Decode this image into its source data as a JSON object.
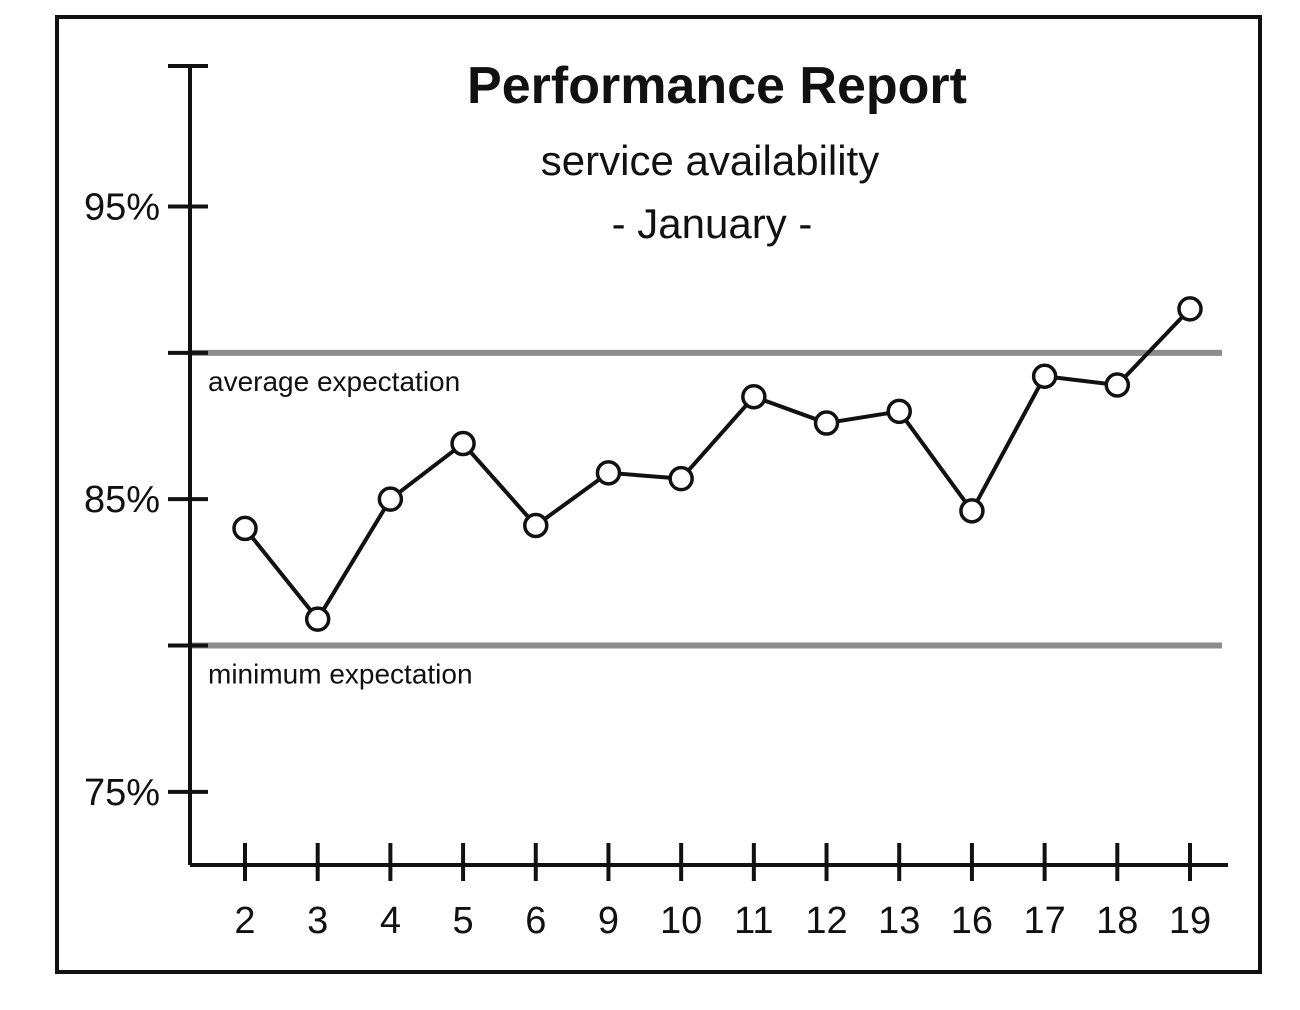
{
  "chart_data": {
    "type": "line",
    "title": "Performance Report",
    "subtitle": [
      "service availability",
      "- January -"
    ],
    "xlabel": "",
    "ylabel": "",
    "categories": [
      "2",
      "3",
      "4",
      "5",
      "6",
      "9",
      "10",
      "11",
      "12",
      "13",
      "16",
      "17",
      "18",
      "19"
    ],
    "series": [
      {
        "values": [
          84.0,
          80.9,
          85.0,
          86.9,
          84.1,
          85.9,
          85.7,
          88.5,
          87.6,
          88.0,
          84.6,
          89.2,
          88.9,
          91.5
        ]
      }
    ],
    "yticks": [
      {
        "value": 95,
        "label": "95%"
      },
      {
        "value": 85,
        "label": "85%"
      },
      {
        "value": 75,
        "label": "75%"
      }
    ],
    "minor_yticks": [
      90,
      80
    ],
    "ylim": [
      72.5,
      99.8
    ],
    "reference_lines": [
      {
        "value": 90,
        "label": "average expectation"
      },
      {
        "value": 80,
        "label": "minimum expectation"
      }
    ],
    "grid": false,
    "legend": "none",
    "colors": {
      "line": "#111111",
      "marker_fill": "#ffffff",
      "reference_line": "#8c8c8c",
      "frame": "#111111"
    }
  }
}
